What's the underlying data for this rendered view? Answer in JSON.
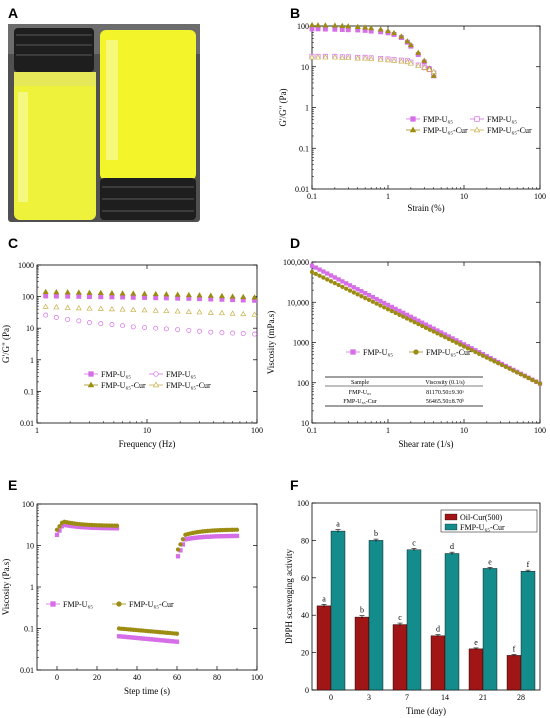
{
  "panels": [
    {
      "id": "A",
      "letter": "A"
    },
    {
      "id": "B",
      "letter": "B"
    },
    {
      "id": "C",
      "letter": "C"
    },
    {
      "id": "D",
      "letter": "D"
    },
    {
      "id": "E",
      "letter": "E"
    },
    {
      "id": "F",
      "letter": "F"
    }
  ],
  "colors": {
    "magenta": "#d66ee8",
    "olive": "#9c8c12",
    "khaki": "#c8b24a",
    "red": "#a01515",
    "teal": "#158c8c",
    "vial_left": "#eef23a",
    "vial_right": "#f3f52a",
    "photo_bg": "#505050",
    "cap": "#1e1e1e"
  },
  "photo": {
    "description_icon": "vial-photo-icon"
  },
  "chart_data": [
    {
      "id": "B",
      "type": "scatter",
      "xscale": "log",
      "yscale": "log",
      "xlim": [
        0.1,
        100
      ],
      "ylim": [
        0.01,
        100
      ],
      "xlabel": "Strain (%)",
      "ylabel": "G'/G\" (Pa)",
      "xticks": [
        "0.1",
        "1",
        "10",
        "100"
      ],
      "yticks": [
        "0.01",
        "0.1",
        "1",
        "10",
        "100"
      ],
      "legend": [
        {
          "name": "FMP-U₆₅",
          "marker": "square-filled",
          "color": "#d66ee8"
        },
        {
          "name": "FMP-U₆₅",
          "marker": "square-open",
          "color": "#d66ee8"
        },
        {
          "name": "FMP-U₆₅-Cur",
          "marker": "triangle-filled",
          "color": "#9c8c12"
        },
        {
          "name": "FMP-U₆₅-Cur",
          "marker": "triangle-open",
          "color": "#c8b24a"
        }
      ],
      "series": [
        {
          "marker": "square-filled",
          "color": "#d66ee8",
          "x": [
            0.1,
            0.12,
            0.15,
            0.2,
            0.25,
            0.3,
            0.4,
            0.5,
            0.6,
            0.8,
            1.0,
            1.2,
            1.5,
            1.8,
            2.0,
            2.5,
            3.0,
            3.5,
            4.0
          ],
          "y": [
            85,
            85,
            84,
            83,
            82,
            81,
            80,
            78,
            75,
            72,
            68,
            62,
            52,
            40,
            32,
            20,
            13,
            9,
            6
          ]
        },
        {
          "marker": "square-open",
          "color": "#d66ee8",
          "x": [
            0.1,
            0.12,
            0.15,
            0.2,
            0.25,
            0.3,
            0.4,
            0.5,
            0.6,
            0.8,
            1.0,
            1.2,
            1.5,
            1.8,
            2.0,
            2.5,
            3.0,
            3.5,
            4.0
          ],
          "y": [
            18,
            18,
            18,
            18,
            17.5,
            17.5,
            17,
            17,
            16.5,
            16,
            15.5,
            15,
            14.5,
            14,
            13,
            11,
            9.5,
            8.5,
            7
          ]
        },
        {
          "marker": "triangle-filled",
          "color": "#9c8c12",
          "x": [
            0.1,
            0.12,
            0.15,
            0.2,
            0.25,
            0.3,
            0.4,
            0.5,
            0.6,
            0.8,
            1.0,
            1.2,
            1.5,
            1.8,
            2.0,
            2.5,
            3.0,
            3.5,
            4.0
          ],
          "y": [
            105,
            104,
            103,
            102,
            100,
            98,
            95,
            92,
            88,
            82,
            75,
            67,
            55,
            42,
            34,
            22,
            14,
            9,
            6
          ]
        },
        {
          "marker": "triangle-open",
          "color": "#c8b24a",
          "x": [
            0.1,
            0.12,
            0.15,
            0.2,
            0.25,
            0.3,
            0.4,
            0.5,
            0.6,
            0.8,
            1.0,
            1.2,
            1.5,
            1.8,
            2.0,
            2.5,
            3.0,
            3.5,
            4.0
          ],
          "y": [
            17,
            17,
            17,
            17,
            16.5,
            16.5,
            16,
            16,
            15.5,
            15,
            14.5,
            14,
            13.5,
            13,
            12,
            10.5,
            9.5,
            8.5,
            7.5
          ]
        }
      ]
    },
    {
      "id": "C",
      "type": "scatter",
      "xscale": "log",
      "yscale": "log",
      "xlim": [
        1,
        100
      ],
      "ylim": [
        0.01,
        1000
      ],
      "xlabel": "Frequency (Hz)",
      "ylabel": "G'/G\" (Pa)",
      "xticks": [
        "1",
        "10",
        "100"
      ],
      "yticks": [
        "0.01",
        "0.1",
        "1",
        "10",
        "100",
        "1000"
      ],
      "legend": [
        {
          "name": "FMP-U₆₅",
          "marker": "square-filled",
          "color": "#d66ee8"
        },
        {
          "name": "FMP-U₆₅",
          "marker": "circle-open",
          "color": "#d66ee8"
        },
        {
          "name": "FMP-U₆₅-Cur",
          "marker": "triangle-filled",
          "color": "#9c8c12"
        },
        {
          "name": "FMP-U₆₅-Cur",
          "marker": "triangle-open",
          "color": "#c8b24a"
        }
      ],
      "series": [
        {
          "marker": "square-filled",
          "color": "#d66ee8",
          "x": [
            1.2,
            1.5,
            1.9,
            2.4,
            3,
            3.8,
            4.8,
            6,
            7.5,
            9.5,
            12,
            15,
            19,
            24,
            30,
            38,
            48,
            60,
            75,
            95
          ],
          "y": [
            105,
            104,
            103,
            102,
            100,
            99,
            98,
            97,
            95,
            94,
            92,
            91,
            89,
            88,
            86,
            84,
            82,
            80,
            78,
            76
          ]
        },
        {
          "marker": "circle-open",
          "color": "#d66ee8",
          "x": [
            1.2,
            1.5,
            1.9,
            2.4,
            3,
            3.8,
            4.8,
            6,
            7.5,
            9.5,
            12,
            15,
            19,
            24,
            30,
            38,
            48,
            60,
            75,
            95
          ],
          "y": [
            26,
            22,
            19,
            17,
            15,
            14,
            13,
            12,
            11,
            10.5,
            10,
            9.5,
            9,
            8.5,
            8,
            7.5,
            7.2,
            7,
            6.8,
            6.5
          ]
        },
        {
          "marker": "triangle-filled",
          "color": "#9c8c12",
          "x": [
            1.2,
            1.5,
            1.9,
            2.4,
            3,
            3.8,
            4.8,
            6,
            7.5,
            9.5,
            12,
            15,
            19,
            24,
            30,
            38,
            48,
            60,
            75,
            95
          ],
          "y": [
            140,
            138,
            136,
            134,
            132,
            130,
            128,
            126,
            124,
            122,
            120,
            118,
            115,
            112,
            110,
            107,
            104,
            100,
            97,
            94
          ]
        },
        {
          "marker": "triangle-open",
          "color": "#c8b24a",
          "x": [
            1.2,
            1.5,
            1.9,
            2.4,
            3,
            3.8,
            4.8,
            6,
            7.5,
            9.5,
            12,
            15,
            19,
            24,
            30,
            38,
            48,
            60,
            75,
            95
          ],
          "y": [
            48,
            46,
            44,
            43,
            42,
            41,
            40,
            39,
            38,
            37,
            36,
            35,
            34,
            33,
            32,
            31,
            30,
            29,
            28,
            27
          ]
        }
      ]
    },
    {
      "id": "D",
      "type": "scatter",
      "xscale": "log",
      "yscale": "log",
      "xlim": [
        0.1,
        100
      ],
      "ylim": [
        10,
        100000
      ],
      "xlabel": "Shear rate (1/s)",
      "ylabel": "Viscosity (mPa.s)",
      "xticks": [
        "0.1",
        "1",
        "10",
        "100"
      ],
      "yticks": [
        "10",
        "100",
        "1000",
        "10,000",
        "100,000"
      ],
      "legend": [
        {
          "name": "FMP-U₆₅",
          "marker": "square-filled",
          "color": "#d66ee8"
        },
        {
          "name": "FMP-U₆₅-Cur",
          "marker": "circle-filled",
          "color": "#9c8c12"
        }
      ],
      "series": [
        {
          "marker": "square-filled",
          "color": "#d66ee8",
          "line": [
            [
              0.1,
              81170
            ],
            [
              100,
              95
            ]
          ]
        },
        {
          "marker": "circle-filled",
          "color": "#9c8c12",
          "line": [
            [
              0.1,
              56465
            ],
            [
              100,
              95
            ]
          ]
        }
      ],
      "table": {
        "headers": [
          "Sample",
          "Viscosity  (0.1/s)"
        ],
        "rows": [
          [
            "FMP-U₆₅",
            "81170.50±9.30ᵃ"
          ],
          [
            "FMP-U₆₅-Cur",
            "56465.50±8.70ᵇ"
          ]
        ]
      }
    },
    {
      "id": "E",
      "type": "scatter",
      "xscale": "linear",
      "yscale": "log",
      "xlim": [
        -10,
        100
      ],
      "ylim": [
        0.01,
        100
      ],
      "xlabel": "Step time (s)",
      "ylabel": "Viscosity (Pa.s)",
      "xticks": [
        "0",
        "20",
        "40",
        "60",
        "80",
        "100"
      ],
      "yticks": [
        "0.01",
        "0.1",
        "1",
        "10",
        "100"
      ],
      "legend": [
        {
          "name": "FMP-U₆₅",
          "marker": "square-filled",
          "color": "#d66ee8"
        },
        {
          "name": "FMP-U₆₅-Cur",
          "marker": "circle-filled",
          "color": "#9c8c12"
        }
      ],
      "segments": [
        {
          "color": "#d66ee8",
          "marker": "square-filled",
          "from": [
            0,
            18
          ],
          "peak": [
            3,
            32
          ],
          "to": [
            30,
            26
          ]
        },
        {
          "color": "#9c8c12",
          "marker": "circle-filled",
          "from": [
            0,
            24
          ],
          "peak": [
            3,
            38
          ],
          "to": [
            30,
            30
          ]
        },
        {
          "color": "#d66ee8",
          "marker": "square-filled",
          "from": [
            31,
            0.065
          ],
          "to": [
            60,
            0.048
          ]
        },
        {
          "color": "#9c8c12",
          "marker": "circle-filled",
          "from": [
            31,
            0.1
          ],
          "to": [
            60,
            0.075
          ]
        },
        {
          "color": "#d66ee8",
          "marker": "square-filled",
          "from": [
            60.5,
            5.5
          ],
          "peak": [
            64,
            14
          ],
          "to": [
            90,
            17
          ]
        },
        {
          "color": "#9c8c12",
          "marker": "circle-filled",
          "from": [
            60.5,
            8
          ],
          "peak": [
            64,
            18
          ],
          "to": [
            90,
            24
          ]
        }
      ]
    },
    {
      "id": "F",
      "type": "bar",
      "categories": [
        "0",
        "3",
        "7",
        "14",
        "21",
        "28"
      ],
      "ylim": [
        0,
        100
      ],
      "yticks": [
        "0",
        "20",
        "40",
        "60",
        "80",
        "100"
      ],
      "xlabel": "Time (day)",
      "ylabel": "DPPH scavenging activity",
      "series": [
        {
          "name": "Oil-Cur(500)",
          "color": "#a01515",
          "values": [
            45,
            39,
            35,
            29,
            22,
            18.5
          ],
          "errors": [
            0.8,
            0.8,
            0.8,
            0.6,
            0.5,
            0.5
          ],
          "letters": [
            "a",
            "b",
            "c",
            "d",
            "e",
            "f"
          ]
        },
        {
          "name": "FMP-U₆₅-Cur",
          "color": "#158c8c",
          "values": [
            85,
            80,
            75,
            73,
            65,
            63.5
          ],
          "errors": [
            0.8,
            0.7,
            0.7,
            0.7,
            0.6,
            0.6
          ],
          "letters": [
            "a",
            "b",
            "c",
            "d",
            "e",
            "f"
          ]
        }
      ]
    }
  ]
}
